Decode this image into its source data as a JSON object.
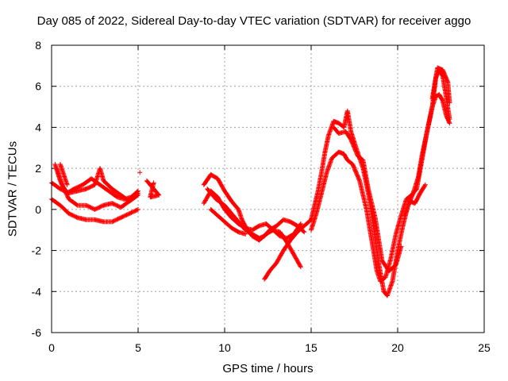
{
  "chart_data": {
    "type": "scatter",
    "title": "Day 085 of 2022, Sidereal Day-to-day VTEC variation (SDTVAR) for receiver aggo",
    "xlabel": "GPS time / hours",
    "ylabel": "SDTVAR / TECUs",
    "xlim": [
      0,
      25
    ],
    "ylim": [
      -6,
      8
    ],
    "xticks": [
      0,
      5,
      10,
      15,
      20,
      25
    ],
    "yticks": [
      -6,
      -4,
      -2,
      0,
      2,
      4,
      6,
      8
    ],
    "grid": true,
    "marker": "+",
    "color": "#ff0000",
    "series": [
      {
        "name": "arc-1",
        "points": [
          [
            0,
            1.3
          ],
          [
            0.5,
            1.0
          ],
          [
            1,
            0.8
          ],
          [
            1.5,
            0.9
          ],
          [
            2,
            1.0
          ],
          [
            2.5,
            1.2
          ],
          [
            2.8,
            2.0
          ],
          [
            3.0,
            1.4
          ],
          [
            3.5,
            1.0
          ],
          [
            4,
            0.7
          ],
          [
            4.5,
            0.4
          ],
          [
            5.0,
            0.7
          ]
        ]
      },
      {
        "name": "arc-2",
        "points": [
          [
            0,
            0.5
          ],
          [
            0.5,
            0.2
          ],
          [
            1,
            -0.2
          ],
          [
            1.5,
            -0.4
          ],
          [
            2,
            -0.5
          ],
          [
            2.5,
            -0.5
          ],
          [
            3,
            -0.6
          ],
          [
            3.5,
            -0.6
          ],
          [
            4,
            -0.4
          ],
          [
            4.5,
            -0.2
          ],
          [
            5,
            0.0
          ]
        ]
      },
      {
        "name": "arc-3",
        "points": [
          [
            0.2,
            2.2
          ],
          [
            0.5,
            1.4
          ],
          [
            1,
            0.5
          ],
          [
            1.5,
            0.2
          ],
          [
            2,
            0.2
          ],
          [
            2.5,
            0.0
          ],
          [
            3,
            0.2
          ],
          [
            3.5,
            0.3
          ],
          [
            4,
            0.1
          ],
          [
            4.5,
            0.4
          ],
          [
            5,
            0.8
          ]
        ]
      },
      {
        "name": "arc-4",
        "points": [
          [
            0.3,
            2.0
          ],
          [
            0.6,
            1.2
          ],
          [
            0.9,
            0.8
          ],
          [
            1.3,
            1.0
          ],
          [
            1.8,
            1.2
          ],
          [
            2.3,
            1.5
          ],
          [
            2.8,
            1.2
          ],
          [
            3.3,
            0.9
          ],
          [
            3.8,
            0.6
          ],
          [
            4.2,
            0.5
          ],
          [
            4.6,
            0.6
          ],
          [
            5,
            0.9
          ]
        ]
      },
      {
        "name": "arc-5",
        "points": [
          [
            0.5,
            2.2
          ],
          [
            0.7,
            1.7
          ],
          [
            0.9,
            1.2
          ]
        ]
      },
      {
        "name": "arc-6",
        "points": [
          [
            5.1,
            1.8
          ]
        ]
      },
      {
        "name": "arc-7",
        "points": [
          [
            5.5,
            1.4
          ],
          [
            5.8,
            1.1
          ],
          [
            6.0,
            0.9
          ],
          [
            6.2,
            0.7
          ],
          [
            5.7,
            0.6
          ],
          [
            5.9,
            1.3
          ]
        ]
      },
      {
        "name": "arc-8",
        "points": [
          [
            8.8,
            1.2
          ],
          [
            9.2,
            1.7
          ],
          [
            9.6,
            1.5
          ],
          [
            10,
            0.9
          ],
          [
            10.4,
            0.4
          ],
          [
            10.8,
            0.0
          ],
          [
            11,
            -0.5
          ],
          [
            11.3,
            -1.0
          ],
          [
            11.6,
            -1.3
          ],
          [
            12,
            -1.5
          ],
          [
            12.4,
            -1.2
          ],
          [
            12.8,
            -1.0
          ],
          [
            13.2,
            -1.1
          ],
          [
            13.6,
            -1.6
          ],
          [
            14,
            -2.2
          ],
          [
            14.4,
            -2.8
          ]
        ]
      },
      {
        "name": "arc-9",
        "points": [
          [
            8.8,
            0.3
          ],
          [
            9.2,
            0.9
          ],
          [
            9.6,
            0.6
          ],
          [
            10,
            0.0
          ],
          [
            10.4,
            -0.4
          ],
          [
            10.8,
            -0.7
          ],
          [
            11.2,
            -0.9
          ],
          [
            11.6,
            -1.0
          ],
          [
            12,
            -0.8
          ],
          [
            12.4,
            -0.7
          ],
          [
            12.8,
            -1.0
          ],
          [
            13.2,
            -1.3
          ],
          [
            13.6,
            -1.4
          ],
          [
            14,
            -1.2
          ],
          [
            14.4,
            -0.7
          ]
        ]
      },
      {
        "name": "arc-10",
        "points": [
          [
            9.0,
            1.0
          ],
          [
            9.5,
            0.5
          ],
          [
            10,
            0.2
          ],
          [
            10.4,
            -0.2
          ],
          [
            10.8,
            -0.6
          ],
          [
            11.2,
            -1.0
          ],
          [
            11.6,
            -1.2
          ],
          [
            12,
            -1.4
          ],
          [
            12.3,
            -1.3
          ],
          [
            12.6,
            -1.0
          ],
          [
            13,
            -0.8
          ],
          [
            13.4,
            -0.5
          ],
          [
            13.8,
            -0.6
          ],
          [
            14.2,
            -0.8
          ],
          [
            14.6,
            -1.1
          ]
        ]
      },
      {
        "name": "arc-11",
        "points": [
          [
            9.2,
            0.0
          ],
          [
            9.6,
            -0.3
          ],
          [
            10,
            -0.6
          ],
          [
            10.4,
            -0.9
          ],
          [
            10.8,
            -1.1
          ],
          [
            11.2,
            -1.2
          ]
        ]
      },
      {
        "name": "arc-12",
        "points": [
          [
            12.3,
            -3.4
          ],
          [
            12.6,
            -3.0
          ],
          [
            13,
            -2.6
          ],
          [
            13.4,
            -2.0
          ],
          [
            13.8,
            -1.5
          ],
          [
            14.2,
            -1.1
          ],
          [
            14.6,
            -0.8
          ],
          [
            15,
            -0.5
          ],
          [
            15.2,
            0.2
          ],
          [
            15.4,
            0.9
          ],
          [
            15.6,
            1.8
          ],
          [
            15.8,
            2.8
          ],
          [
            16.0,
            3.6
          ],
          [
            16.3,
            4.3
          ],
          [
            16.6,
            4.2
          ],
          [
            16.9,
            4.0
          ],
          [
            17.1,
            4.8
          ],
          [
            17.3,
            3.8
          ],
          [
            17.6,
            3.0
          ],
          [
            18,
            2.0
          ],
          [
            18.3,
            0.8
          ],
          [
            18.6,
            -0.8
          ],
          [
            18.9,
            -2.6
          ],
          [
            19.2,
            -4.0
          ],
          [
            19.4,
            -4.2
          ],
          [
            19.7,
            -3.5
          ],
          [
            20,
            -2.0
          ],
          [
            20.3,
            -0.8
          ],
          [
            20.6,
            0.2
          ],
          [
            20.9,
            0.8
          ],
          [
            21.2,
            1.6
          ],
          [
            21.4,
            2.6
          ],
          [
            21.6,
            3.4
          ],
          [
            21.8,
            4.2
          ],
          [
            22,
            5.0
          ],
          [
            22.2,
            5.5
          ],
          [
            22.4,
            5.6
          ],
          [
            22.6,
            5.3
          ],
          [
            22.8,
            4.6
          ],
          [
            23,
            4.2
          ]
        ]
      },
      {
        "name": "arc-13",
        "points": [
          [
            15.0,
            -1.0
          ],
          [
            15.3,
            -0.2
          ],
          [
            15.6,
            0.8
          ],
          [
            15.9,
            1.8
          ],
          [
            16.2,
            2.5
          ],
          [
            16.6,
            2.8
          ],
          [
            16.9,
            2.7
          ],
          [
            17.1,
            2.4
          ],
          [
            17.4,
            2.2
          ],
          [
            17.8,
            1.4
          ],
          [
            18.2,
            0.0
          ],
          [
            18.5,
            -1.5
          ],
          [
            18.8,
            -3.0
          ],
          [
            19.0,
            -3.5
          ],
          [
            19.3,
            -3.3
          ],
          [
            19.6,
            -2.4
          ],
          [
            19.9,
            -1.2
          ],
          [
            20.2,
            -0.3
          ],
          [
            20.5,
            0.5
          ],
          [
            20.8,
            0.7
          ],
          [
            21.1,
            1.0
          ],
          [
            21.4,
            2.4
          ],
          [
            21.7,
            3.8
          ],
          [
            22,
            5.0
          ],
          [
            22.2,
            6.4
          ],
          [
            22.4,
            6.8
          ],
          [
            22.6,
            6.5
          ],
          [
            22.8,
            5.5
          ],
          [
            23,
            4.4
          ]
        ]
      },
      {
        "name": "arc-14",
        "points": [
          [
            16.3,
            4.0
          ],
          [
            16.6,
            3.7
          ],
          [
            17,
            3.8
          ],
          [
            17.3,
            3.4
          ],
          [
            17.7,
            2.6
          ],
          [
            18,
            2.4
          ],
          [
            18.3,
            1.0
          ],
          [
            18.7,
            -0.4
          ],
          [
            19.1,
            -2.5
          ],
          [
            19.5,
            -3.0
          ],
          [
            19.9,
            -2.7
          ],
          [
            20.2,
            -1.8
          ]
        ]
      },
      {
        "name": "arc-15",
        "points": [
          [
            20.4,
            -0.3
          ],
          [
            20.7,
            0.4
          ],
          [
            21.0,
            0.3
          ],
          [
            21.3,
            0.8
          ],
          [
            21.6,
            1.2
          ]
        ]
      },
      {
        "name": "arc-16",
        "points": [
          [
            22.0,
            5.4
          ],
          [
            22.3,
            6.9
          ],
          [
            22.6,
            6.8
          ],
          [
            22.9,
            6.2
          ],
          [
            23,
            5.2
          ]
        ]
      }
    ]
  }
}
